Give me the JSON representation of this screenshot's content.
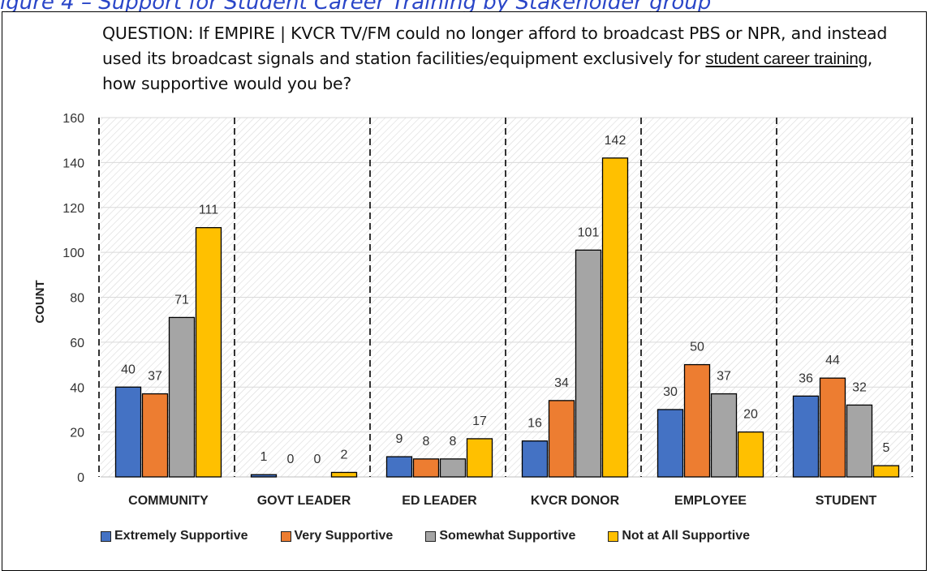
{
  "caption": "igure 4 – Support for Student Career Training by Stakeholder group",
  "question": {
    "label": "QUESTION:",
    "text_part1": " If EMPIRE | KVCR TV/FM could no longer afford to broadcast PBS or NPR, and instead used its broadcast signals and station facilities/equipment exclusively for ",
    "emphasis": "student career training",
    "text_part2": ", how supportive would you be?"
  },
  "chart_data": {
    "type": "bar",
    "categories": [
      "COMMUNITY",
      "GOVT LEADER",
      "ED LEADER",
      "KVCR DONOR",
      "EMPLOYEE",
      "STUDENT"
    ],
    "series": [
      {
        "name": "Extremely Supportive",
        "values": [
          40,
          1,
          9,
          16,
          30,
          36
        ],
        "color": "#4472c4"
      },
      {
        "name": "Very Supportive",
        "values": [
          37,
          0,
          8,
          34,
          50,
          44
        ],
        "color": "#ed7d31"
      },
      {
        "name": "Somewhat Supportive",
        "values": [
          71,
          0,
          8,
          101,
          37,
          32
        ],
        "color": "#a5a5a5"
      },
      {
        "name": "Not at All Supportive",
        "values": [
          111,
          2,
          17,
          142,
          20,
          5
        ],
        "color": "#ffc000"
      }
    ],
    "ylabel": "COUNT",
    "ylim": [
      0,
      160
    ],
    "yticks": [
      0,
      20,
      40,
      60,
      80,
      100,
      120,
      140,
      160
    ],
    "grid": true,
    "legend": "bottom"
  }
}
